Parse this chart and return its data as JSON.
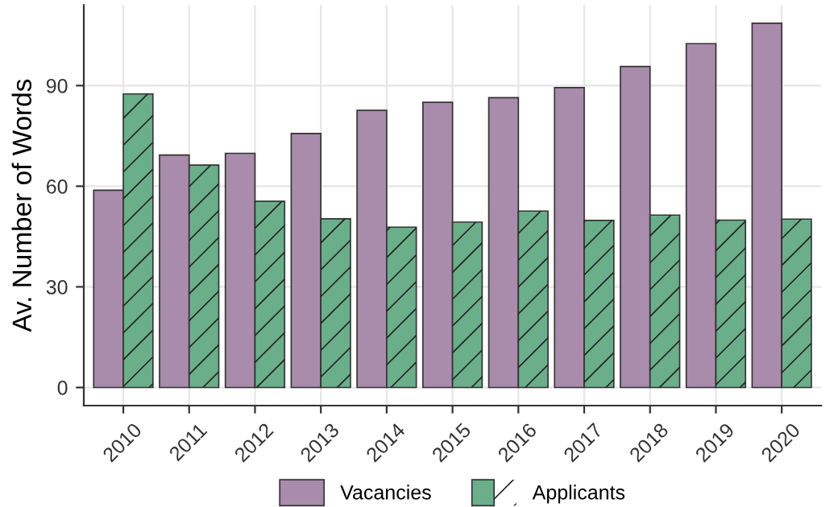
{
  "chart_data": {
    "type": "bar",
    "ylabel": "Av. Number of Words",
    "categories": [
      "2010",
      "2011",
      "2012",
      "2013",
      "2014",
      "2015",
      "2016",
      "2017",
      "2018",
      "2019",
      "2020"
    ],
    "series": [
      {
        "name": "Vacancies",
        "color": "#a98bab",
        "values": [
          58.8,
          69.3,
          69.8,
          75.7,
          82.6,
          85,
          86.4,
          89.4,
          95.7,
          102.5,
          108.6
        ]
      },
      {
        "name": "Applicants",
        "color": "#6aae8a",
        "values": [
          87.5,
          66.3,
          55.5,
          50.3,
          47.8,
          49.3,
          52.6,
          49.8,
          51.4,
          49.9,
          50.2
        ]
      }
    ],
    "ylim": [
      -5.4,
      114
    ],
    "yticks": [
      0,
      30,
      60,
      90
    ],
    "grid": true,
    "legend": "bottom"
  }
}
